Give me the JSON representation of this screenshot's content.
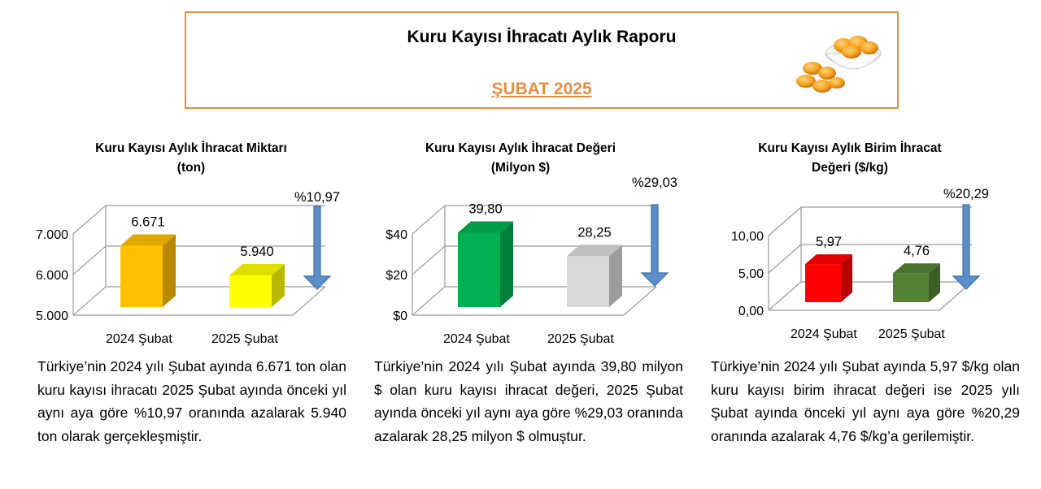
{
  "header": {
    "title": "Kuru Kayısı İhracatı Aylık Raporu",
    "subtitle": "ŞUBAT 2025"
  },
  "colors": {
    "accent": "#e58e3f",
    "arrow": "#5b8fc9"
  },
  "chart_data": [
    {
      "type": "bar",
      "title": "Kuru Kayısı Aylık İhracat Miktarı (ton)",
      "title_lines": [
        "Kuru Kayısı Aylık İhracat Miktarı",
        "(ton)"
      ],
      "categories": [
        "2024 Şubat",
        "2025 Şubat"
      ],
      "values": [
        6671,
        5940
      ],
      "value_labels": [
        "6.671",
        "5.940"
      ],
      "bar_colors": [
        "#ffc000",
        "#ffff00"
      ],
      "ylim": [
        5000,
        7000
      ],
      "yticks": [
        5000,
        6000,
        7000
      ],
      "ytick_labels": [
        "5.000",
        "6.000",
        "7.000"
      ],
      "change_label": "%10,97",
      "change_direction": "down",
      "grid": true
    },
    {
      "type": "bar",
      "title": "Kuru Kayısı Aylık İhracat Değeri (Milyon $)",
      "title_lines": [
        "Kuru Kayısı Aylık İhracat Değeri",
        "(Milyon $)"
      ],
      "categories": [
        "2024 Şubat",
        "2025 Şubat"
      ],
      "values": [
        39.8,
        28.25
      ],
      "value_labels": [
        "39,80",
        "28,25"
      ],
      "bar_colors": [
        "#00b050",
        "#d9d9d9"
      ],
      "ylim": [
        0,
        40
      ],
      "yticks": [
        0,
        20,
        40
      ],
      "ytick_labels": [
        "$0",
        "$20",
        "$40"
      ],
      "change_label": "%29,03",
      "change_direction": "down",
      "grid": true
    },
    {
      "type": "bar",
      "title": "Kuru Kayısı Aylık Birim İhracat Değeri ($/kg)",
      "title_lines": [
        "Kuru Kayısı Aylık Birim İhracat",
        "Değeri ($/kg)"
      ],
      "categories": [
        "2024 Şubat",
        "2025 Şubat"
      ],
      "values": [
        5.97,
        4.76
      ],
      "value_labels": [
        "5,97",
        "4,76"
      ],
      "bar_colors": [
        "#ff0000",
        "#548235"
      ],
      "ylim": [
        0,
        10
      ],
      "yticks": [
        0,
        5,
        10
      ],
      "ytick_labels": [
        "0,00",
        "5,00",
        "10,00"
      ],
      "change_label": "%20,29",
      "change_direction": "down",
      "grid": true
    }
  ],
  "descriptions": [
    "Türkiye’nin 2024 yılı Şubat ayında 6.671 ton olan kuru kayısı ihracatı 2025 Şubat ayında önceki yıl aynı aya göre %10,97 oranında azalarak 5.940 ton olarak gerçekleşmiştir.",
    "Türkiye’nin 2024 yılı Şubat ayında 39,80 milyon $ olan kuru kayısı ihracat değeri, 2025 Şubat ayında önceki yıl aynı aya göre %29,03 oranında azalarak 28,25 milyon $ olmuştur.",
    "Türkiye’nin 2024 yılı Şubat ayında 5,97 $/kg olan kuru kayısı birim ihracat değeri ise 2025 yılı Şubat ayında önceki yıl aynı aya göre %20,29 oranında azalarak 4,76 $/kg’a gerilemiştir."
  ]
}
